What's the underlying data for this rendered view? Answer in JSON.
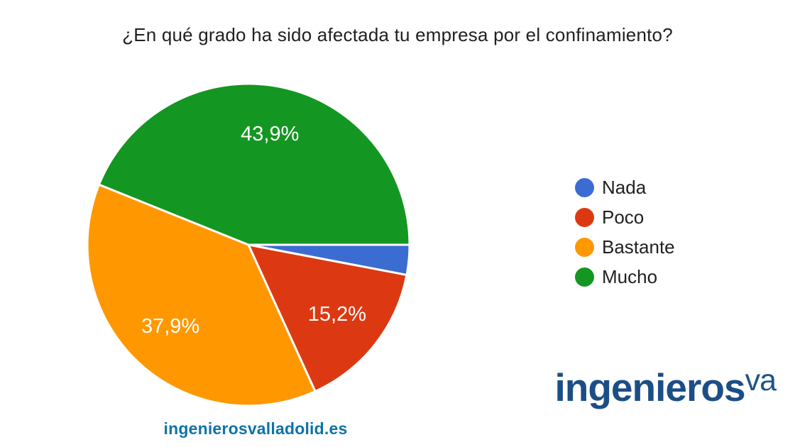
{
  "chart_data": {
    "type": "pie",
    "title": "¿En qué grado ha sido afectada tu empresa por el confinamiento?",
    "unit": "%",
    "total": 100,
    "start_angle_deg": 0,
    "direction": "clockwise",
    "legend_position": "right",
    "slice_border_color": "#FFFFFF",
    "slice_label_color": "#FFFFFF",
    "series": [
      {
        "name": "Nada",
        "value": 3.0,
        "label": "",
        "color": "#3B6CD1"
      },
      {
        "name": "Poco",
        "value": 15.2,
        "label": "15,2%",
        "color": "#DC3912"
      },
      {
        "name": "Bastante",
        "value": 37.9,
        "label": "37,9%",
        "color": "#FF9800"
      },
      {
        "name": "Mucho",
        "value": 43.9,
        "label": "43,9%",
        "color": "#149622"
      }
    ]
  },
  "footer": {
    "website": "ingenierosvalladolid.es",
    "color": "#0E73A8"
  },
  "logo": {
    "main": "ingenieros",
    "superscript": "va",
    "main_color": "#1C4E86",
    "superscript_color": "#1D5588"
  }
}
